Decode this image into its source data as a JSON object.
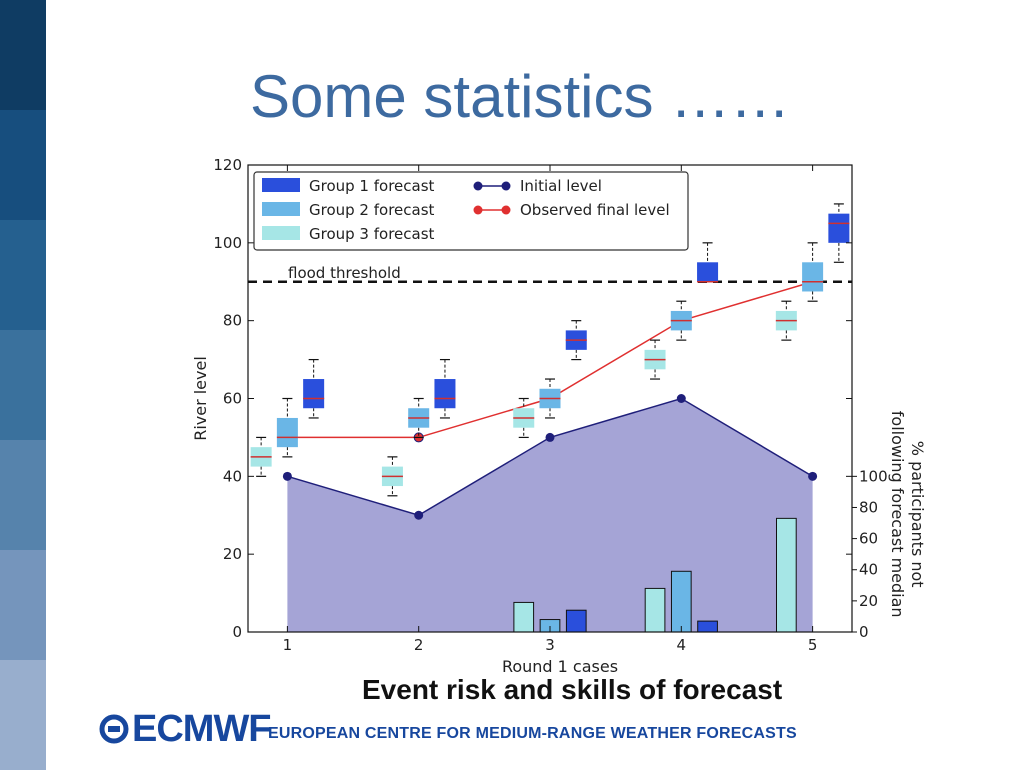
{
  "slide": {
    "title": "Some statistics ……",
    "caption": "Event risk and skills of forecast",
    "logo_text": "ECMWF",
    "org_name": "EUROPEAN CENTRE FOR MEDIUM-RANGE WEATHER FORECASTS",
    "sidebar_colors": [
      "#0f3c63",
      "#174e7e",
      "#25608f",
      "#3a719d",
      "#5683ac",
      "#7595bc",
      "#98aecd"
    ],
    "accent": "#3d6aa0"
  },
  "chart_data": {
    "type": "line",
    "xlabel": "Round 1 cases",
    "ylabel": "River level",
    "y2label": "% participants not following forecast median",
    "xlim": [
      0.7,
      5.3
    ],
    "ylim": [
      0,
      120
    ],
    "y2lim": [
      0,
      100
    ],
    "x_ticks": [
      1,
      2,
      3,
      4,
      5
    ],
    "y_ticks": [
      0,
      20,
      40,
      60,
      80,
      100,
      120
    ],
    "y2_ticks": [
      0,
      20,
      40,
      60,
      80,
      100
    ],
    "threshold": {
      "label": "flood threshold",
      "value": 90
    },
    "initial_level": {
      "name": "Initial level",
      "x": [
        1,
        2,
        3,
        4,
        5
      ],
      "y": [
        40,
        30,
        50,
        60,
        40
      ],
      "color": "#1f1f7a"
    },
    "observed_final_level": {
      "name": "Observed final level",
      "x": [
        1,
        2,
        3,
        4,
        5
      ],
      "y": [
        50,
        50,
        60,
        80,
        90
      ],
      "color": "#e03030"
    },
    "box_groups": [
      {
        "name": "Group 1 forecast",
        "color": "#2a4fdc",
        "offset": 0.2,
        "boxes": [
          {
            "x": 1,
            "whislo": 55,
            "q1": 57.5,
            "med": 60,
            "q3": 65,
            "whishi": 70
          },
          {
            "x": 2,
            "whislo": 55,
            "q1": 57.5,
            "med": 60,
            "q3": 65,
            "whishi": 70
          },
          {
            "x": 3,
            "whislo": 70,
            "q1": 72.5,
            "med": 75,
            "q3": 77.5,
            "whishi": 80
          },
          {
            "x": 4,
            "whislo": 90,
            "q1": 90,
            "med": 90,
            "q3": 95,
            "whishi": 100
          },
          {
            "x": 5,
            "whislo": 95,
            "q1": 100,
            "med": 105,
            "q3": 107.5,
            "whishi": 110
          }
        ]
      },
      {
        "name": "Group 2 forecast",
        "color": "#6ab6e6",
        "offset": 0,
        "boxes": [
          {
            "x": 1,
            "whislo": 45,
            "q1": 47.5,
            "med": 50,
            "q3": 55,
            "whishi": 60
          },
          {
            "x": 2,
            "whislo": 50,
            "q1": 52.5,
            "med": 55,
            "q3": 57.5,
            "whishi": 60
          },
          {
            "x": 3,
            "whislo": 55,
            "q1": 57.5,
            "med": 60,
            "q3": 62.5,
            "whishi": 65
          },
          {
            "x": 4,
            "whislo": 75,
            "q1": 77.5,
            "med": 80,
            "q3": 82.5,
            "whishi": 85
          },
          {
            "x": 5,
            "whislo": 85,
            "q1": 87.5,
            "med": 90,
            "q3": 95,
            "whishi": 100
          }
        ]
      },
      {
        "name": "Group 3 forecast",
        "color": "#a6e6e6",
        "offset": -0.2,
        "boxes": [
          {
            "x": 1,
            "whislo": 40,
            "q1": 42.5,
            "med": 45,
            "q3": 47.5,
            "whishi": 50
          },
          {
            "x": 2,
            "whislo": 35,
            "q1": 37.5,
            "med": 40,
            "q3": 42.5,
            "whishi": 45
          },
          {
            "x": 3,
            "whislo": 50,
            "q1": 52.5,
            "med": 55,
            "q3": 57.5,
            "whishi": 60
          },
          {
            "x": 4,
            "whislo": 65,
            "q1": 67.5,
            "med": 70,
            "q3": 72.5,
            "whishi": 75
          },
          {
            "x": 5,
            "whislo": 75,
            "q1": 77.5,
            "med": 80,
            "q3": 82.5,
            "whishi": 85
          }
        ]
      }
    ],
    "participation_bars": [
      {
        "group": "Group 3 forecast",
        "x": 3,
        "value": 19
      },
      {
        "group": "Group 2 forecast",
        "x": 3,
        "value": 8
      },
      {
        "group": "Group 1 forecast",
        "x": 3,
        "value": 14
      },
      {
        "group": "Group 3 forecast",
        "x": 4,
        "value": 28
      },
      {
        "group": "Group 2 forecast",
        "x": 4,
        "value": 39
      },
      {
        "group": "Group 1 forecast",
        "x": 4,
        "value": 7
      },
      {
        "group": "Group 3 forecast",
        "x": 5,
        "value": 73
      }
    ],
    "fill_color": "#a5a4d6",
    "legend_position": "top-left"
  }
}
